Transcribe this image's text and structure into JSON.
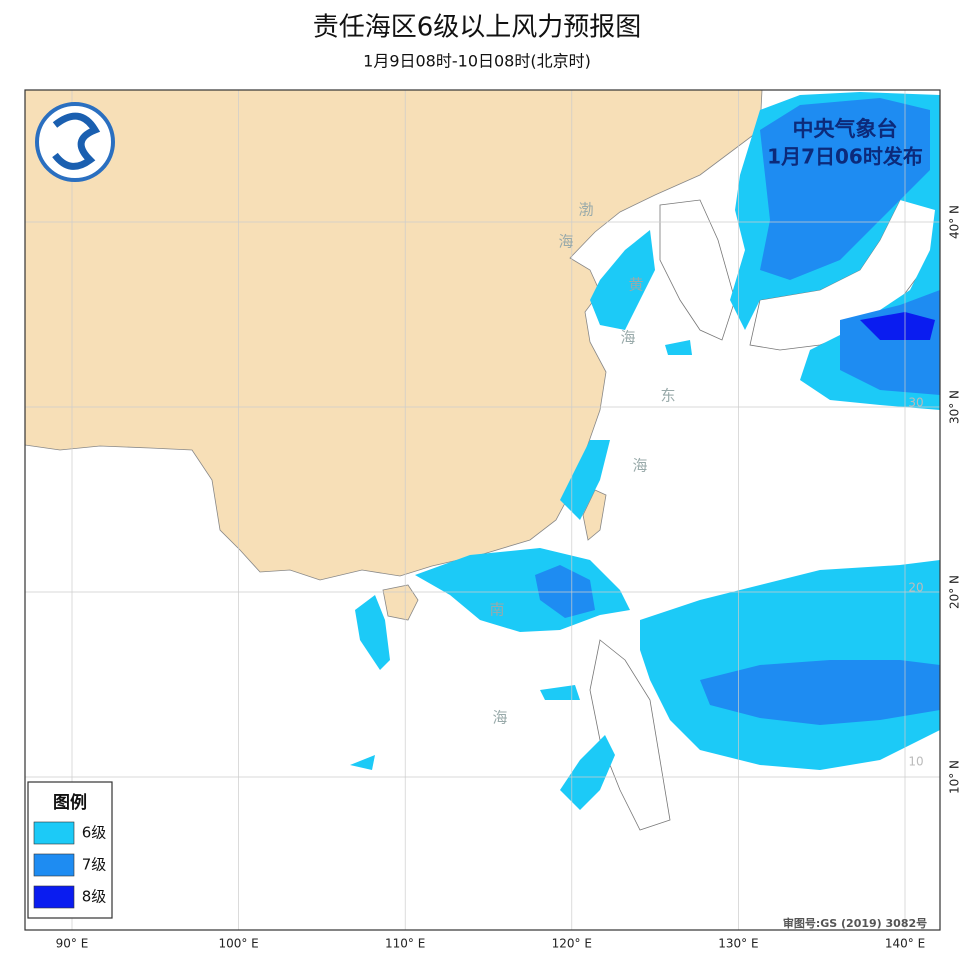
{
  "header": {
    "title": "责任海区6级以上风力预报图",
    "subtitle": "1月9日08时-10日08时(北京时)"
  },
  "publisher": {
    "name": "中央气象台",
    "issued": "1月7日06时发布"
  },
  "legend": {
    "title": "图例",
    "items": [
      {
        "label": "6级",
        "color": "#1ccaf7"
      },
      {
        "label": "7级",
        "color": "#1e8cf2"
      },
      {
        "label": "8级",
        "color": "#0a1cf0"
      }
    ]
  },
  "sea_labels": [
    "渤",
    "海",
    "黄",
    "海",
    "东",
    "海",
    "南",
    "海"
  ],
  "grid_labels": [
    "30",
    "20",
    "10"
  ],
  "map": {
    "lon_ticks": [
      {
        "value": 90,
        "label": "90° E"
      },
      {
        "value": 100,
        "label": "100° E"
      },
      {
        "value": 110,
        "label": "110° E"
      },
      {
        "value": 120,
        "label": "120° E"
      },
      {
        "value": 130,
        "label": "130° E"
      },
      {
        "value": 140,
        "label": "140° E"
      }
    ],
    "lat_ticks": [
      {
        "value": 40,
        "label": "40° N"
      },
      {
        "value": 30,
        "label": "30° N"
      },
      {
        "value": 20,
        "label": "20° N"
      },
      {
        "value": 10,
        "label": "10° N"
      }
    ]
  },
  "approval": "审图号:GS (2019) 3082号"
}
